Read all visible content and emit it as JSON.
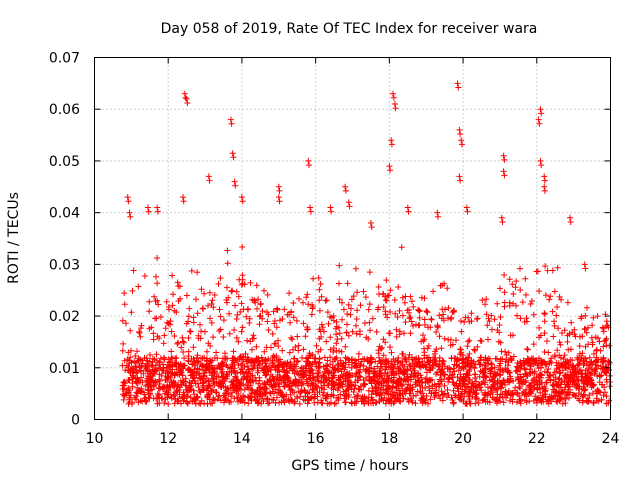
{
  "chart_data": {
    "type": "scatter",
    "title": "Day 058 of 2019, Rate Of TEC Index for receiver wara",
    "xlabel": "GPS time / hours",
    "ylabel": "ROTI / TECUs",
    "xlim": [
      10,
      24
    ],
    "ylim": [
      0,
      0.07
    ],
    "xticks": [
      10,
      12,
      14,
      16,
      18,
      20,
      22,
      24
    ],
    "xtick_labels": [
      "10",
      "12",
      "14",
      "16",
      "18",
      "20",
      "22",
      "24"
    ],
    "yticks": [
      0,
      0.01,
      0.02,
      0.03,
      0.04,
      0.05,
      0.06,
      0.07
    ],
    "ytick_labels": [
      "0",
      "0.01",
      "0.02",
      "0.03",
      "0.04",
      "0.05",
      "0.06",
      "0.07"
    ],
    "grid": true,
    "marker": "+",
    "color": "#ff0000",
    "series": [
      {
        "name": "ROTI",
        "x_range": [
          10.75,
          24.0
        ],
        "baseline": 0.008,
        "notable_points": [
          [
            10.9,
            0.043
          ],
          [
            10.95,
            0.04
          ],
          [
            11.45,
            0.041
          ],
          [
            11.7,
            0.041
          ],
          [
            12.45,
            0.063
          ],
          [
            12.5,
            0.062
          ],
          [
            12.4,
            0.043
          ],
          [
            13.1,
            0.047
          ],
          [
            13.7,
            0.058
          ],
          [
            13.75,
            0.0515
          ],
          [
            13.8,
            0.046
          ],
          [
            14.0,
            0.043
          ],
          [
            15.0,
            0.045
          ],
          [
            15.0,
            0.043
          ],
          [
            15.8,
            0.05
          ],
          [
            15.85,
            0.041
          ],
          [
            16.4,
            0.041
          ],
          [
            16.8,
            0.045
          ],
          [
            16.9,
            0.042
          ],
          [
            17.5,
            0.038
          ],
          [
            18.1,
            0.063
          ],
          [
            18.15,
            0.061
          ],
          [
            18.05,
            0.054
          ],
          [
            18.0,
            0.049
          ],
          [
            18.5,
            0.041
          ],
          [
            19.3,
            0.04
          ],
          [
            19.85,
            0.065
          ],
          [
            19.9,
            0.056
          ],
          [
            19.95,
            0.054
          ],
          [
            19.9,
            0.047
          ],
          [
            20.1,
            0.041
          ],
          [
            21.1,
            0.051
          ],
          [
            21.1,
            0.048
          ],
          [
            21.05,
            0.039
          ],
          [
            22.1,
            0.06
          ],
          [
            22.05,
            0.058
          ],
          [
            22.1,
            0.05
          ],
          [
            22.2,
            0.047
          ],
          [
            22.2,
            0.045
          ],
          [
            22.9,
            0.039
          ],
          [
            23.3,
            0.03
          ],
          [
            23.9,
            0.019
          ]
        ],
        "envelope": [
          [
            10.75,
            0.03
          ],
          [
            11.0,
            0.033
          ],
          [
            11.5,
            0.036
          ],
          [
            12.0,
            0.029
          ],
          [
            12.5,
            0.03
          ],
          [
            13.0,
            0.028
          ],
          [
            13.5,
            0.033
          ],
          [
            14.0,
            0.036
          ],
          [
            14.5,
            0.028
          ],
          [
            15.0,
            0.026
          ],
          [
            15.5,
            0.03
          ],
          [
            16.0,
            0.028
          ],
          [
            16.5,
            0.029
          ],
          [
            17.0,
            0.033
          ],
          [
            17.5,
            0.03
          ],
          [
            18.0,
            0.034
          ],
          [
            18.5,
            0.033
          ],
          [
            19.0,
            0.025
          ],
          [
            19.5,
            0.029
          ],
          [
            20.0,
            0.022
          ],
          [
            20.5,
            0.03
          ],
          [
            21.0,
            0.03
          ],
          [
            21.5,
            0.034
          ],
          [
            22.0,
            0.03
          ],
          [
            22.5,
            0.031
          ],
          [
            23.0,
            0.025
          ],
          [
            23.5,
            0.023
          ],
          [
            24.0,
            0.02
          ]
        ]
      }
    ]
  }
}
